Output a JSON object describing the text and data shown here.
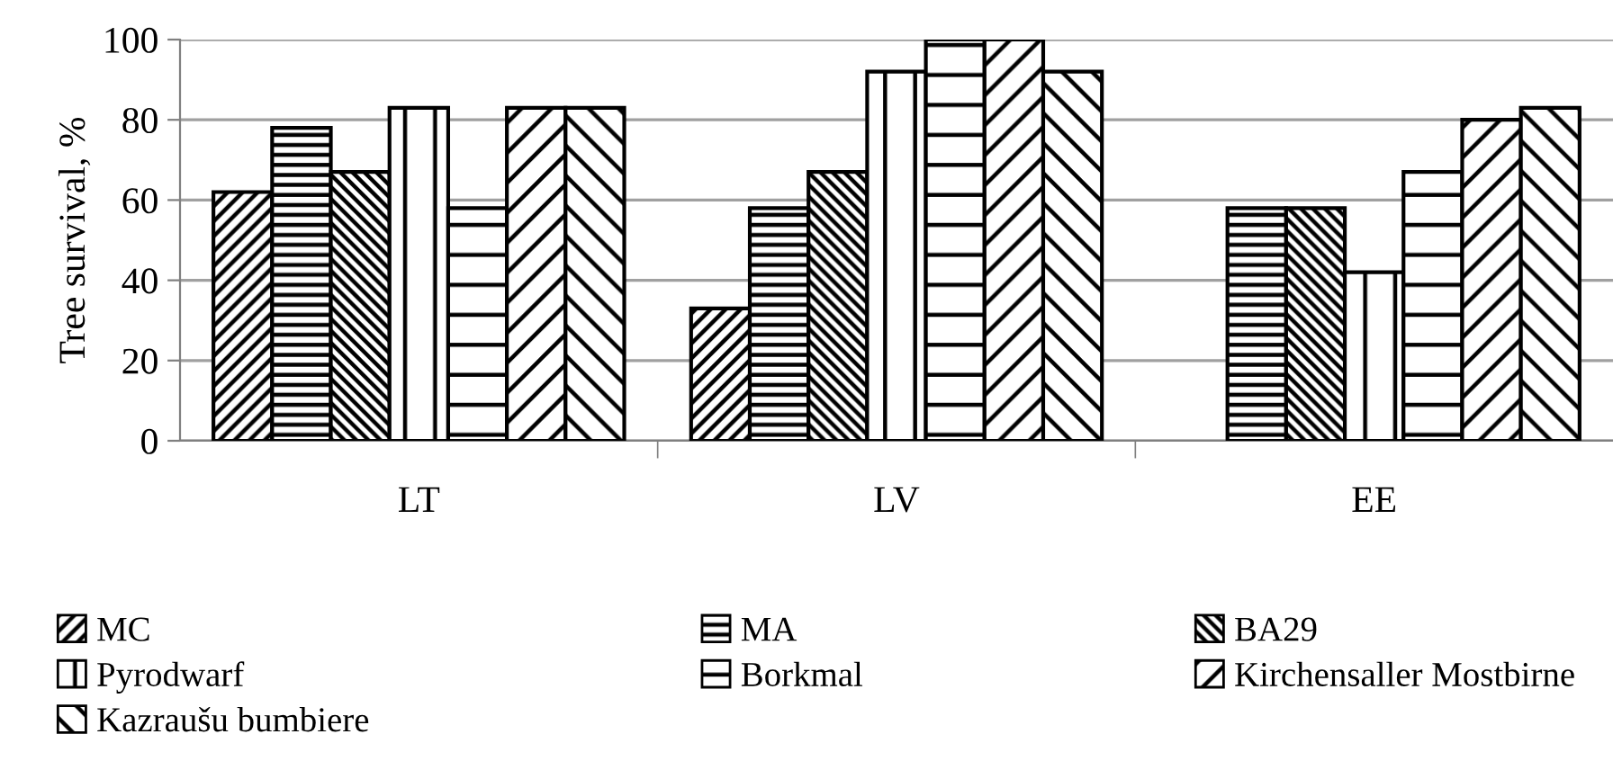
{
  "chart_data": {
    "type": "bar",
    "ylabel": "Tree survival, %",
    "categories": [
      "LT",
      "LV",
      "EE"
    ],
    "series": [
      {
        "name": "MC",
        "color": "#000000",
        "values": [
          62,
          33,
          null
        ]
      },
      {
        "name": "MA",
        "color": "#000000",
        "values": [
          78,
          58,
          58
        ]
      },
      {
        "name": "BA29",
        "color": "#000000",
        "values": [
          67,
          67,
          58
        ]
      },
      {
        "name": "Pyrodwarf",
        "color": "#000000",
        "values": [
          83,
          92,
          42
        ]
      },
      {
        "name": "Borkmal",
        "color": "#000000",
        "values": [
          58,
          100,
          67
        ]
      },
      {
        "name": "Kirchensaller Mostbirne",
        "color": "#000000",
        "values": [
          83,
          100,
          80
        ]
      },
      {
        "name": "Kazraušu bumbiere",
        "color": "#000000",
        "values": [
          83,
          92,
          83
        ]
      }
    ],
    "ylim": [
      0,
      100
    ],
    "yticks": [
      0,
      20,
      40,
      60,
      80,
      100
    ],
    "grid": "y",
    "legend": "bottom"
  }
}
